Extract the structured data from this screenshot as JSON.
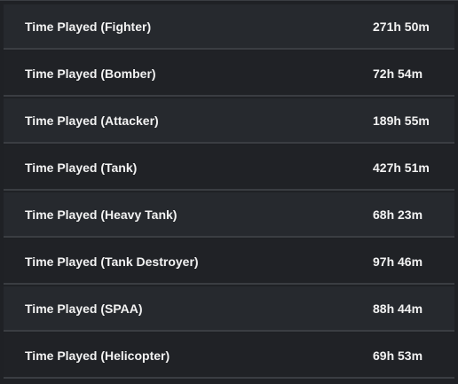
{
  "stats": {
    "rows": [
      {
        "label": "Time Played (Fighter)",
        "value": "271h 50m"
      },
      {
        "label": "Time Played (Bomber)",
        "value": "72h 54m"
      },
      {
        "label": "Time Played (Attacker)",
        "value": "189h 55m"
      },
      {
        "label": "Time Played (Tank)",
        "value": "427h 51m"
      },
      {
        "label": "Time Played (Heavy Tank)",
        "value": "68h 23m"
      },
      {
        "label": "Time Played (Tank Destroyer)",
        "value": "97h 46m"
      },
      {
        "label": "Time Played (SPAA)",
        "value": "88h 44m"
      },
      {
        "label": "Time Played (Helicopter)",
        "value": "69h 53m"
      }
    ]
  },
  "colors": {
    "background": "#1f2125",
    "row_light": "#26292e",
    "row_dark": "#202226",
    "divider": "#3a3d42",
    "text": "#f2f2f2"
  }
}
